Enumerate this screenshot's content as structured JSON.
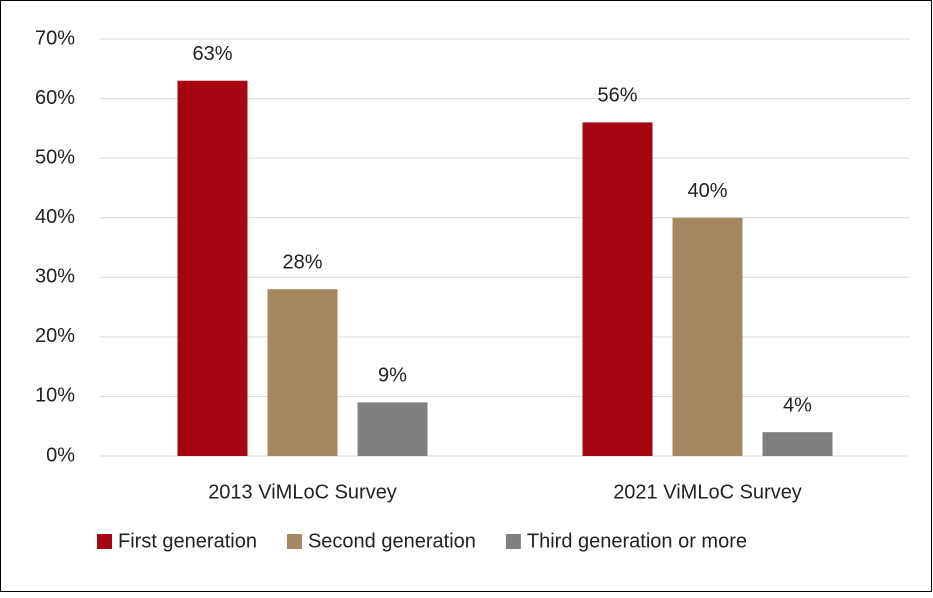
{
  "chart_data": {
    "type": "bar",
    "categories": [
      "2013 ViMLoC Survey",
      "2021 ViMLoC Survey"
    ],
    "series": [
      {
        "name": "First generation",
        "color": "#a50612",
        "values": [
          63,
          56
        ],
        "value_labels": [
          "63%",
          "56%"
        ]
      },
      {
        "name": "Second generation",
        "color": "#a58760",
        "values": [
          28,
          40
        ],
        "value_labels": [
          "28%",
          "40%"
        ]
      },
      {
        "name": "Third generation or more",
        "color": "#7f7f7f",
        "values": [
          9,
          4
        ],
        "value_labels": [
          "9%",
          "4%"
        ]
      }
    ],
    "ylim": [
      0,
      70
    ],
    "yticks": [
      {
        "value": 0,
        "label": "0%"
      },
      {
        "value": 10,
        "label": "10%"
      },
      {
        "value": 20,
        "label": "20%"
      },
      {
        "value": 30,
        "label": "30%"
      },
      {
        "value": 40,
        "label": "40%"
      },
      {
        "value": 50,
        "label": "50%"
      },
      {
        "value": 60,
        "label": "60%"
      },
      {
        "value": 70,
        "label": "70%"
      }
    ],
    "grid": true,
    "legend": "bottom"
  }
}
